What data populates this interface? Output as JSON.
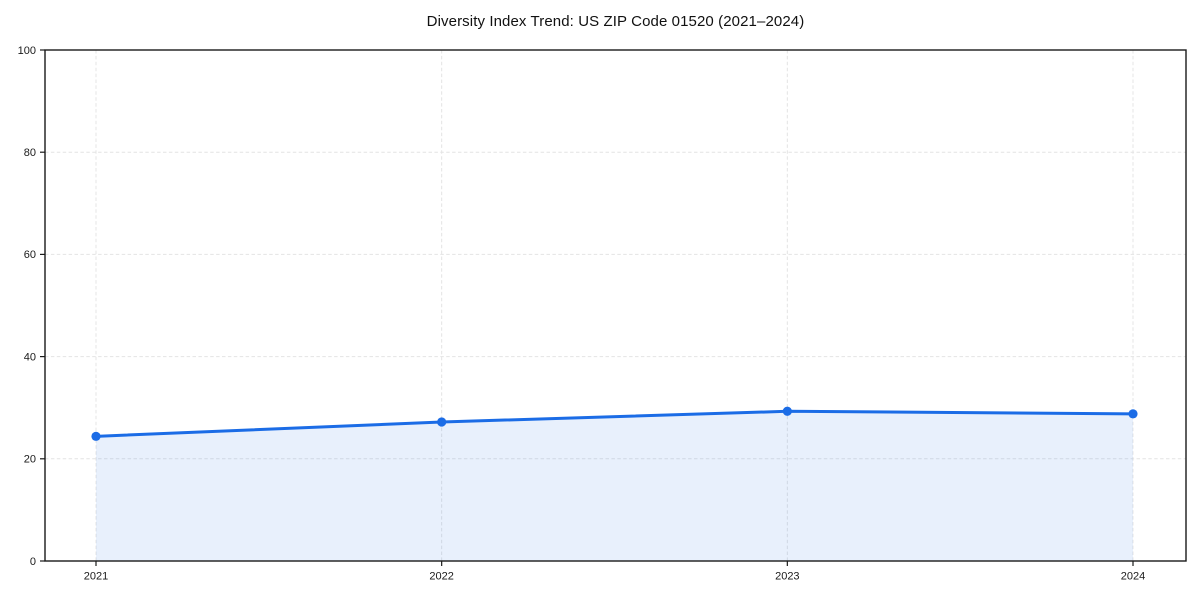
{
  "chart_data": {
    "type": "area",
    "title": "Diversity Index Trend: US ZIP Code 01520 (2021–2024)",
    "categories": [
      "2021",
      "2022",
      "2023",
      "2024"
    ],
    "series": [
      {
        "name": "Diversity Index",
        "values": [
          24.4,
          27.2,
          29.3,
          28.8
        ]
      }
    ],
    "xlabel": "",
    "ylabel": "",
    "ylim": [
      0,
      100
    ],
    "yticks": [
      0,
      20,
      40,
      60,
      80,
      100
    ],
    "grid": "dashed-both-axes",
    "legend_position": "none",
    "colors": {
      "line": "#1b6ce6",
      "marker": "#1b6ce6",
      "fill": "#1b6ce6",
      "fill_opacity": "0.1",
      "grid": "#e4e4e4",
      "spine": "#1a1a1a",
      "tick_text": "#1a1a1a",
      "background": "#ffffff"
    }
  }
}
